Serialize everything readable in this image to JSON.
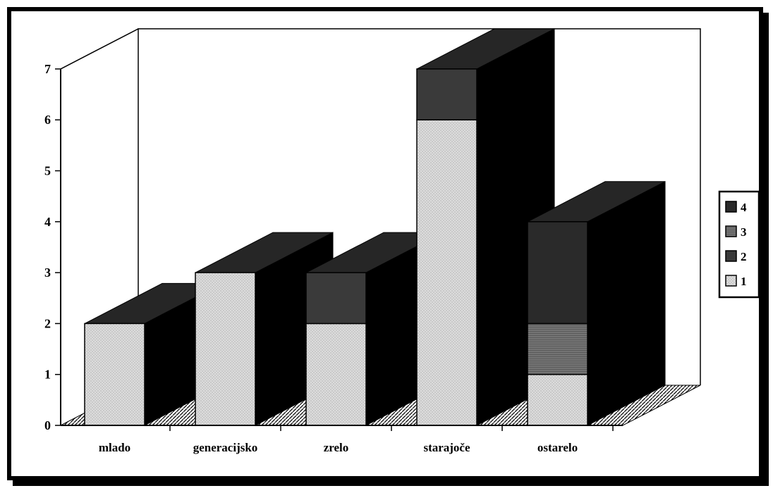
{
  "chart_data": {
    "type": "bar",
    "stacked": true,
    "three_d": true,
    "categories": [
      "mlado",
      "generacijsko",
      "zrelo",
      "starajoče",
      "ostarelo"
    ],
    "series": [
      {
        "name": "1",
        "values": [
          2,
          3,
          2,
          6,
          1
        ]
      },
      {
        "name": "2",
        "values": [
          0,
          0,
          1,
          1,
          0
        ]
      },
      {
        "name": "3",
        "values": [
          0,
          0,
          0,
          0,
          1
        ]
      },
      {
        "name": "4",
        "values": [
          0,
          0,
          0,
          0,
          2
        ]
      }
    ],
    "yticks": [
      0,
      1,
      2,
      3,
      4,
      5,
      6,
      7
    ],
    "ylim": [
      0,
      7
    ],
    "legend": {
      "position": "right",
      "order": [
        "4",
        "3",
        "2",
        "1"
      ]
    },
    "colors": {
      "1": "#d9d9d9",
      "2": "#3a3a3a",
      "3": "#555555",
      "4": "#2a2a2a",
      "side": "#000000",
      "top": "#262626"
    }
  }
}
